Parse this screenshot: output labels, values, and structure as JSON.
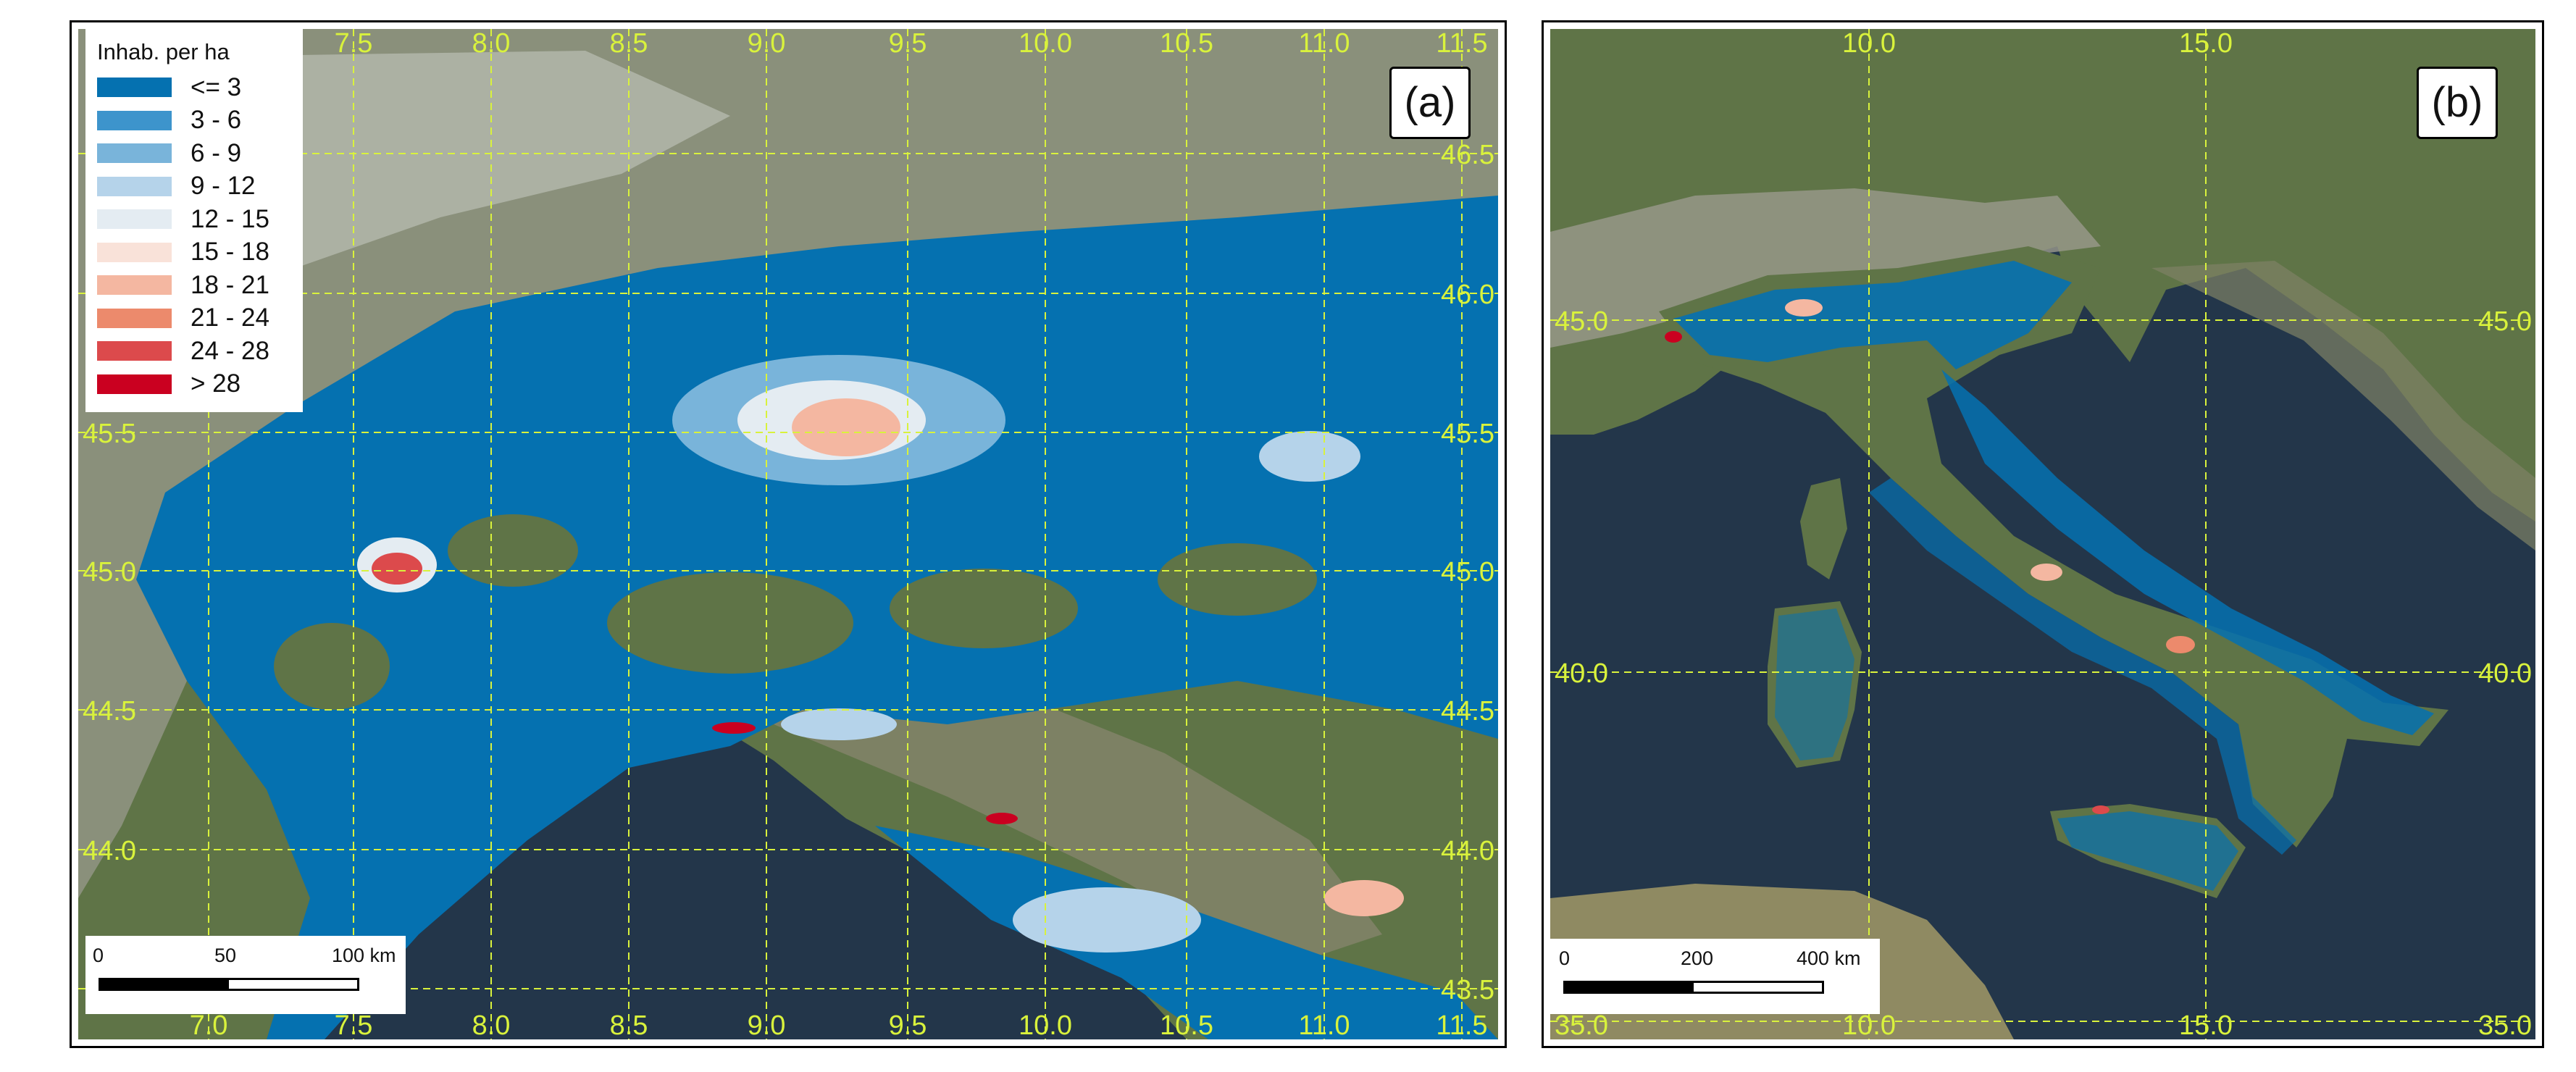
{
  "panel_a": {
    "label": "(a)",
    "legend": {
      "title": "Inhab. per ha",
      "items": [
        {
          "label": "<= 3",
          "color": "#0571b0"
        },
        {
          "label": "3 - 6",
          "color": "#3d94cc"
        },
        {
          "label": "6 - 9",
          "color": "#79b4da"
        },
        {
          "label": "9 - 12",
          "color": "#b5d3ea"
        },
        {
          "label": "12 - 15",
          "color": "#e4ecf2"
        },
        {
          "label": "15 - 18",
          "color": "#f9e2d9"
        },
        {
          "label": "18 - 21",
          "color": "#f4b7a1"
        },
        {
          "label": "21 - 24",
          "color": "#ec8a6c"
        },
        {
          "label": "24 - 28",
          "color": "#dc4a4c"
        },
        {
          "label": "> 28",
          "color": "#ca0020"
        }
      ]
    },
    "lon_top": [
      "7.5",
      "8.0",
      "8.5",
      "9.0",
      "9.5",
      "10.0",
      "10.5",
      "11.0",
      "11.5"
    ],
    "lon_bottom": [
      "7.0",
      "7.5",
      "8.0",
      "8.5",
      "9.0",
      "9.5",
      "10.0",
      "10.5",
      "11.0",
      "11.5"
    ],
    "lat_left": [
      "45.5",
      "45.0",
      "44.5",
      "44.0"
    ],
    "lat_right": [
      "46.5",
      "46.0",
      "45.5",
      "45.0",
      "44.5",
      "44.0",
      "43.5"
    ],
    "scalebar": {
      "ticks": [
        "0",
        "50",
        "100 km"
      ]
    }
  },
  "panel_b": {
    "label": "(b)",
    "lon_top": [
      "10.0",
      "15.0"
    ],
    "lon_bottom": [
      "10.0",
      "15.0"
    ],
    "lat_left": [
      "45.0",
      "40.0",
      "35.0"
    ],
    "lat_right": [
      "45.0",
      "40.0",
      "35.0"
    ],
    "scalebar": {
      "ticks": [
        "0",
        "200",
        "400 km"
      ]
    }
  },
  "colors": {
    "sea": "#23364a",
    "land": "#5f7447",
    "mountain": "#9a9a8c",
    "grid": "#d9f23c",
    "density_low": "#0571b0"
  }
}
